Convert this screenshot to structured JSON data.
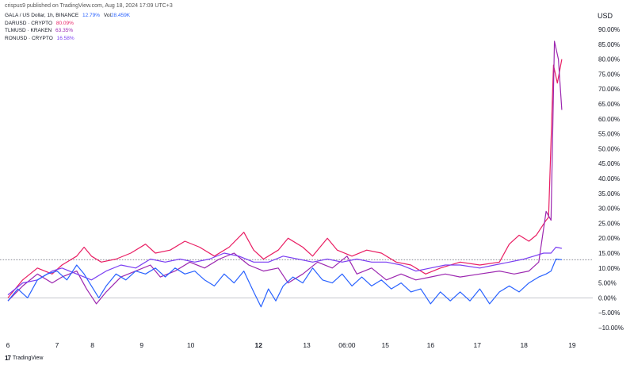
{
  "header": {
    "published": "crispus9 published on TradingView.com, Aug 18, 2024 17:09 UTC+3",
    "currency": "USD"
  },
  "legend": [
    {
      "label": "GALA / US Dollar, 1h, BINANCE",
      "value": "12.79%",
      "extra": "Vol",
      "extra_value": "28.459K",
      "color": "#2962ff"
    },
    {
      "label": "DARUSD · CRYPTO",
      "value": "80.09%",
      "color": "#e91e63"
    },
    {
      "label": "TLMUSD · KRAKEN",
      "value": "63.35%",
      "color": "#9c27b0"
    },
    {
      "label": "RONUSD · CRYPTO",
      "value": "16.58%",
      "color": "#7b3ff2"
    }
  ],
  "footer": {
    "brand": "TradingView"
  },
  "chart_data": {
    "type": "line",
    "x_ticks": [
      {
        "label": "6",
        "pos": 0
      },
      {
        "label": "7",
        "pos": 1
      },
      {
        "label": "8",
        "pos": 1.72
      },
      {
        "label": "9",
        "pos": 2.72
      },
      {
        "label": "10",
        "pos": 3.72
      },
      {
        "label": "12",
        "pos": 5.1,
        "bold": true
      },
      {
        "label": "13",
        "pos": 6.08
      },
      {
        "label": "06:00",
        "pos": 6.9
      },
      {
        "label": "15",
        "pos": 7.68
      },
      {
        "label": "16",
        "pos": 8.6
      },
      {
        "label": "17",
        "pos": 9.55
      },
      {
        "label": "18",
        "pos": 10.5
      },
      {
        "label": "19",
        "pos": 11.48
      }
    ],
    "xlim": [
      0,
      11.9
    ],
    "y_ticks": [
      "90.00%",
      "85.00%",
      "80.00%",
      "75.00%",
      "70.00%",
      "65.00%",
      "60.00%",
      "55.00%",
      "50.00%",
      "45.00%",
      "40.00%",
      "35.00%",
      "30.00%",
      "25.00%",
      "20.00%",
      "15.00%",
      "10.00%",
      "5.00%",
      "0.00%",
      "−5.00%",
      "−10.00%"
    ],
    "ylim": [
      -10,
      90
    ],
    "baseline": 0,
    "last_value_line": 12.79,
    "series": [
      {
        "name": "DARUSD · CRYPTO",
        "color": "#e91e63",
        "points": [
          [
            0,
            0
          ],
          [
            0.3,
            6
          ],
          [
            0.6,
            10
          ],
          [
            0.9,
            8
          ],
          [
            1.1,
            11
          ],
          [
            1.4,
            14
          ],
          [
            1.55,
            17
          ],
          [
            1.7,
            14
          ],
          [
            1.9,
            12
          ],
          [
            2.2,
            13
          ],
          [
            2.5,
            15
          ],
          [
            2.8,
            18
          ],
          [
            3.0,
            15
          ],
          [
            3.3,
            16
          ],
          [
            3.6,
            19
          ],
          [
            3.9,
            17
          ],
          [
            4.2,
            14
          ],
          [
            4.5,
            17
          ],
          [
            4.8,
            22
          ],
          [
            5.0,
            16
          ],
          [
            5.2,
            13
          ],
          [
            5.5,
            16
          ],
          [
            5.7,
            20
          ],
          [
            6.0,
            17
          ],
          [
            6.2,
            14
          ],
          [
            6.5,
            20
          ],
          [
            6.7,
            16
          ],
          [
            7.0,
            14
          ],
          [
            7.3,
            16
          ],
          [
            7.6,
            15
          ],
          [
            7.9,
            12
          ],
          [
            8.2,
            11
          ],
          [
            8.5,
            8
          ],
          [
            8.8,
            10
          ],
          [
            9.2,
            12
          ],
          [
            9.6,
            11
          ],
          [
            10.0,
            12
          ],
          [
            10.2,
            18
          ],
          [
            10.4,
            21
          ],
          [
            10.6,
            19
          ],
          [
            10.75,
            21
          ],
          [
            10.95,
            26
          ],
          [
            11.0,
            27
          ],
          [
            11.1,
            78
          ],
          [
            11.18,
            72
          ],
          [
            11.27,
            80
          ]
        ]
      },
      {
        "name": "TLMUSD · KRAKEN",
        "color": "#9c27b0",
        "points": [
          [
            0,
            -1
          ],
          [
            0.3,
            4
          ],
          [
            0.6,
            8
          ],
          [
            0.9,
            5
          ],
          [
            1.1,
            7
          ],
          [
            1.4,
            9
          ],
          [
            1.6,
            3
          ],
          [
            1.8,
            -2
          ],
          [
            2.0,
            2
          ],
          [
            2.3,
            7
          ],
          [
            2.6,
            9
          ],
          [
            2.9,
            11
          ],
          [
            3.1,
            7
          ],
          [
            3.4,
            9
          ],
          [
            3.7,
            12
          ],
          [
            4.0,
            10
          ],
          [
            4.3,
            13
          ],
          [
            4.6,
            15
          ],
          [
            4.9,
            11
          ],
          [
            5.2,
            9
          ],
          [
            5.5,
            10
          ],
          [
            5.7,
            5
          ],
          [
            6.0,
            8
          ],
          [
            6.3,
            12
          ],
          [
            6.6,
            10
          ],
          [
            6.9,
            14
          ],
          [
            7.1,
            8
          ],
          [
            7.4,
            10
          ],
          [
            7.7,
            6
          ],
          [
            8.0,
            8
          ],
          [
            8.3,
            6
          ],
          [
            8.6,
            7
          ],
          [
            8.9,
            8
          ],
          [
            9.2,
            7
          ],
          [
            9.6,
            8
          ],
          [
            10.0,
            9
          ],
          [
            10.3,
            8
          ],
          [
            10.6,
            9
          ],
          [
            10.8,
            12
          ],
          [
            10.95,
            29
          ],
          [
            11.05,
            26
          ],
          [
            11.12,
            86
          ],
          [
            11.2,
            80
          ],
          [
            11.27,
            63
          ]
        ]
      },
      {
        "name": "RONUSD · CRYPTO",
        "color": "#7b3ff2",
        "points": [
          [
            0,
            1
          ],
          [
            0.3,
            5
          ],
          [
            0.6,
            6
          ],
          [
            0.9,
            9
          ],
          [
            1.1,
            10
          ],
          [
            1.4,
            8
          ],
          [
            1.7,
            6
          ],
          [
            2.0,
            9
          ],
          [
            2.3,
            11
          ],
          [
            2.6,
            10
          ],
          [
            2.9,
            13
          ],
          [
            3.2,
            12
          ],
          [
            3.5,
            13
          ],
          [
            3.8,
            12
          ],
          [
            4.1,
            13
          ],
          [
            4.4,
            15
          ],
          [
            4.7,
            14
          ],
          [
            5.0,
            12
          ],
          [
            5.3,
            12
          ],
          [
            5.6,
            14
          ],
          [
            5.9,
            13
          ],
          [
            6.2,
            12
          ],
          [
            6.5,
            13
          ],
          [
            6.8,
            12
          ],
          [
            7.1,
            13
          ],
          [
            7.4,
            12
          ],
          [
            7.7,
            12
          ],
          [
            8.0,
            11
          ],
          [
            8.3,
            9
          ],
          [
            8.6,
            10
          ],
          [
            8.9,
            11
          ],
          [
            9.2,
            11
          ],
          [
            9.6,
            10
          ],
          [
            9.9,
            11
          ],
          [
            10.2,
            12
          ],
          [
            10.5,
            13
          ],
          [
            10.7,
            14
          ],
          [
            10.9,
            15
          ],
          [
            11.05,
            15
          ],
          [
            11.15,
            17
          ],
          [
            11.27,
            16.6
          ]
        ]
      },
      {
        "name": "GALA / US Dollar",
        "color": "#2962ff",
        "points": [
          [
            0,
            -1
          ],
          [
            0.2,
            3
          ],
          [
            0.4,
            0
          ],
          [
            0.6,
            6
          ],
          [
            0.8,
            8
          ],
          [
            1.0,
            9
          ],
          [
            1.2,
            6
          ],
          [
            1.4,
            11
          ],
          [
            1.55,
            8
          ],
          [
            1.7,
            4
          ],
          [
            1.85,
            0
          ],
          [
            2.0,
            4
          ],
          [
            2.2,
            8
          ],
          [
            2.4,
            6
          ],
          [
            2.6,
            9
          ],
          [
            2.8,
            8
          ],
          [
            3.0,
            10
          ],
          [
            3.2,
            7
          ],
          [
            3.4,
            10
          ],
          [
            3.6,
            8
          ],
          [
            3.8,
            9
          ],
          [
            4.0,
            6
          ],
          [
            4.2,
            4
          ],
          [
            4.4,
            8
          ],
          [
            4.6,
            5
          ],
          [
            4.8,
            9
          ],
          [
            5.0,
            2
          ],
          [
            5.15,
            -3
          ],
          [
            5.3,
            3
          ],
          [
            5.45,
            -1
          ],
          [
            5.6,
            4
          ],
          [
            5.8,
            7
          ],
          [
            6.0,
            5
          ],
          [
            6.2,
            10
          ],
          [
            6.4,
            6
          ],
          [
            6.6,
            5
          ],
          [
            6.8,
            8
          ],
          [
            7.0,
            4
          ],
          [
            7.2,
            7
          ],
          [
            7.4,
            4
          ],
          [
            7.6,
            6
          ],
          [
            7.8,
            3
          ],
          [
            8.0,
            5
          ],
          [
            8.2,
            2
          ],
          [
            8.4,
            3
          ],
          [
            8.6,
            -2
          ],
          [
            8.8,
            2
          ],
          [
            9.0,
            -1
          ],
          [
            9.2,
            2
          ],
          [
            9.4,
            -1
          ],
          [
            9.6,
            3
          ],
          [
            9.8,
            -2
          ],
          [
            10.0,
            2
          ],
          [
            10.2,
            4
          ],
          [
            10.4,
            2
          ],
          [
            10.6,
            5
          ],
          [
            10.8,
            7
          ],
          [
            10.95,
            8
          ],
          [
            11.05,
            9
          ],
          [
            11.15,
            13
          ],
          [
            11.27,
            12.8
          ]
        ]
      }
    ]
  }
}
